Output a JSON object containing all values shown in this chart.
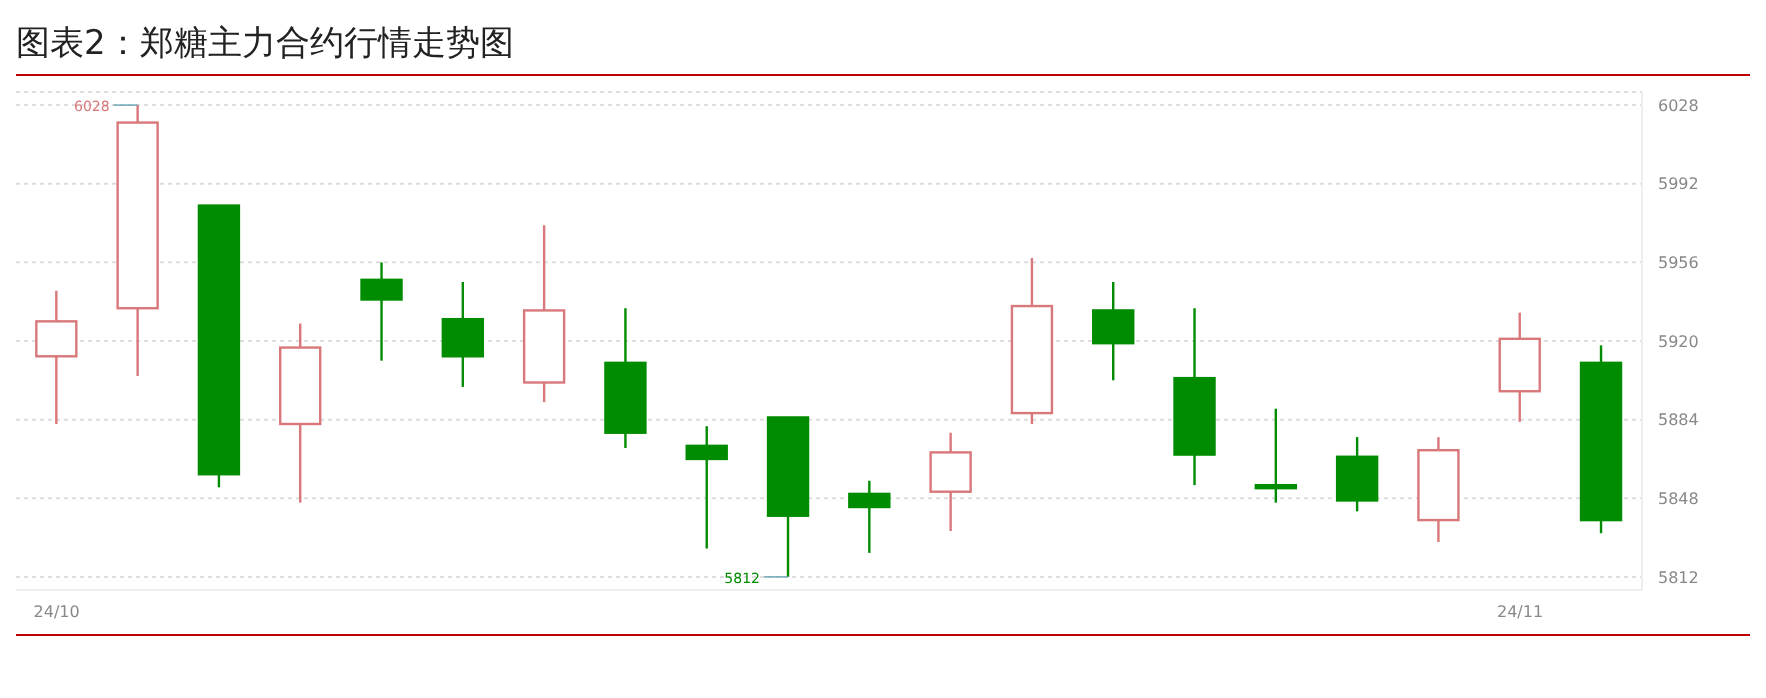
{
  "chart_data": {
    "type": "candlestick",
    "title": "图表2：郑糖主力合约行情走势图",
    "categories": [
      "24/10",
      null,
      null,
      null,
      null,
      null,
      null,
      null,
      null,
      null,
      null,
      null,
      null,
      null,
      null,
      null,
      null,
      null,
      "24/11",
      null
    ],
    "ohlc": [
      [
        5913,
        5943,
        5882,
        5929
      ],
      [
        5935,
        6028,
        5904,
        6020
      ],
      [
        5982,
        5982,
        5853,
        5859
      ],
      [
        5882,
        5928,
        5846,
        5917
      ],
      [
        5948,
        5956,
        5911,
        5939
      ],
      [
        5930,
        5947,
        5899,
        5913
      ],
      [
        5901,
        5973,
        5892,
        5934
      ],
      [
        5910,
        5935,
        5871,
        5878
      ],
      [
        5872,
        5881,
        5825,
        5866
      ],
      [
        5885,
        5885,
        5812,
        5840
      ],
      [
        5850,
        5856,
        5823,
        5844
      ],
      [
        5851,
        5878,
        5833,
        5869
      ],
      [
        5887,
        5958,
        5882,
        5936
      ],
      [
        5934,
        5947,
        5902,
        5919
      ],
      [
        5903,
        5935,
        5854,
        5868
      ],
      [
        5854,
        5889,
        5846,
        5853
      ],
      [
        5867,
        5876,
        5842,
        5847
      ],
      [
        5838,
        5876,
        5828,
        5870
      ],
      [
        5897,
        5933,
        5883,
        5921
      ],
      [
        5910,
        5918,
        5832,
        5838
      ]
    ],
    "colors": [
      "#d9787a",
      "#d9787a",
      "#008c00",
      "#d9787a",
      "#008c00",
      "#008c00",
      "#d9787a",
      "#008c00",
      "#008c00",
      "#008c00",
      "#008c00",
      "#d9787a",
      "#d9787a",
      "#008c00",
      "#008c00",
      "#008c00",
      "#008c00",
      "#d9787a",
      "#d9787a",
      "#008c00"
    ],
    "ylim": [
      5806,
      6034
    ],
    "yticks": [
      5812,
      5848,
      5884,
      5920,
      5956,
      5992,
      6028
    ],
    "grid": "y",
    "annotations": [
      "6028",
      "5812"
    ]
  }
}
